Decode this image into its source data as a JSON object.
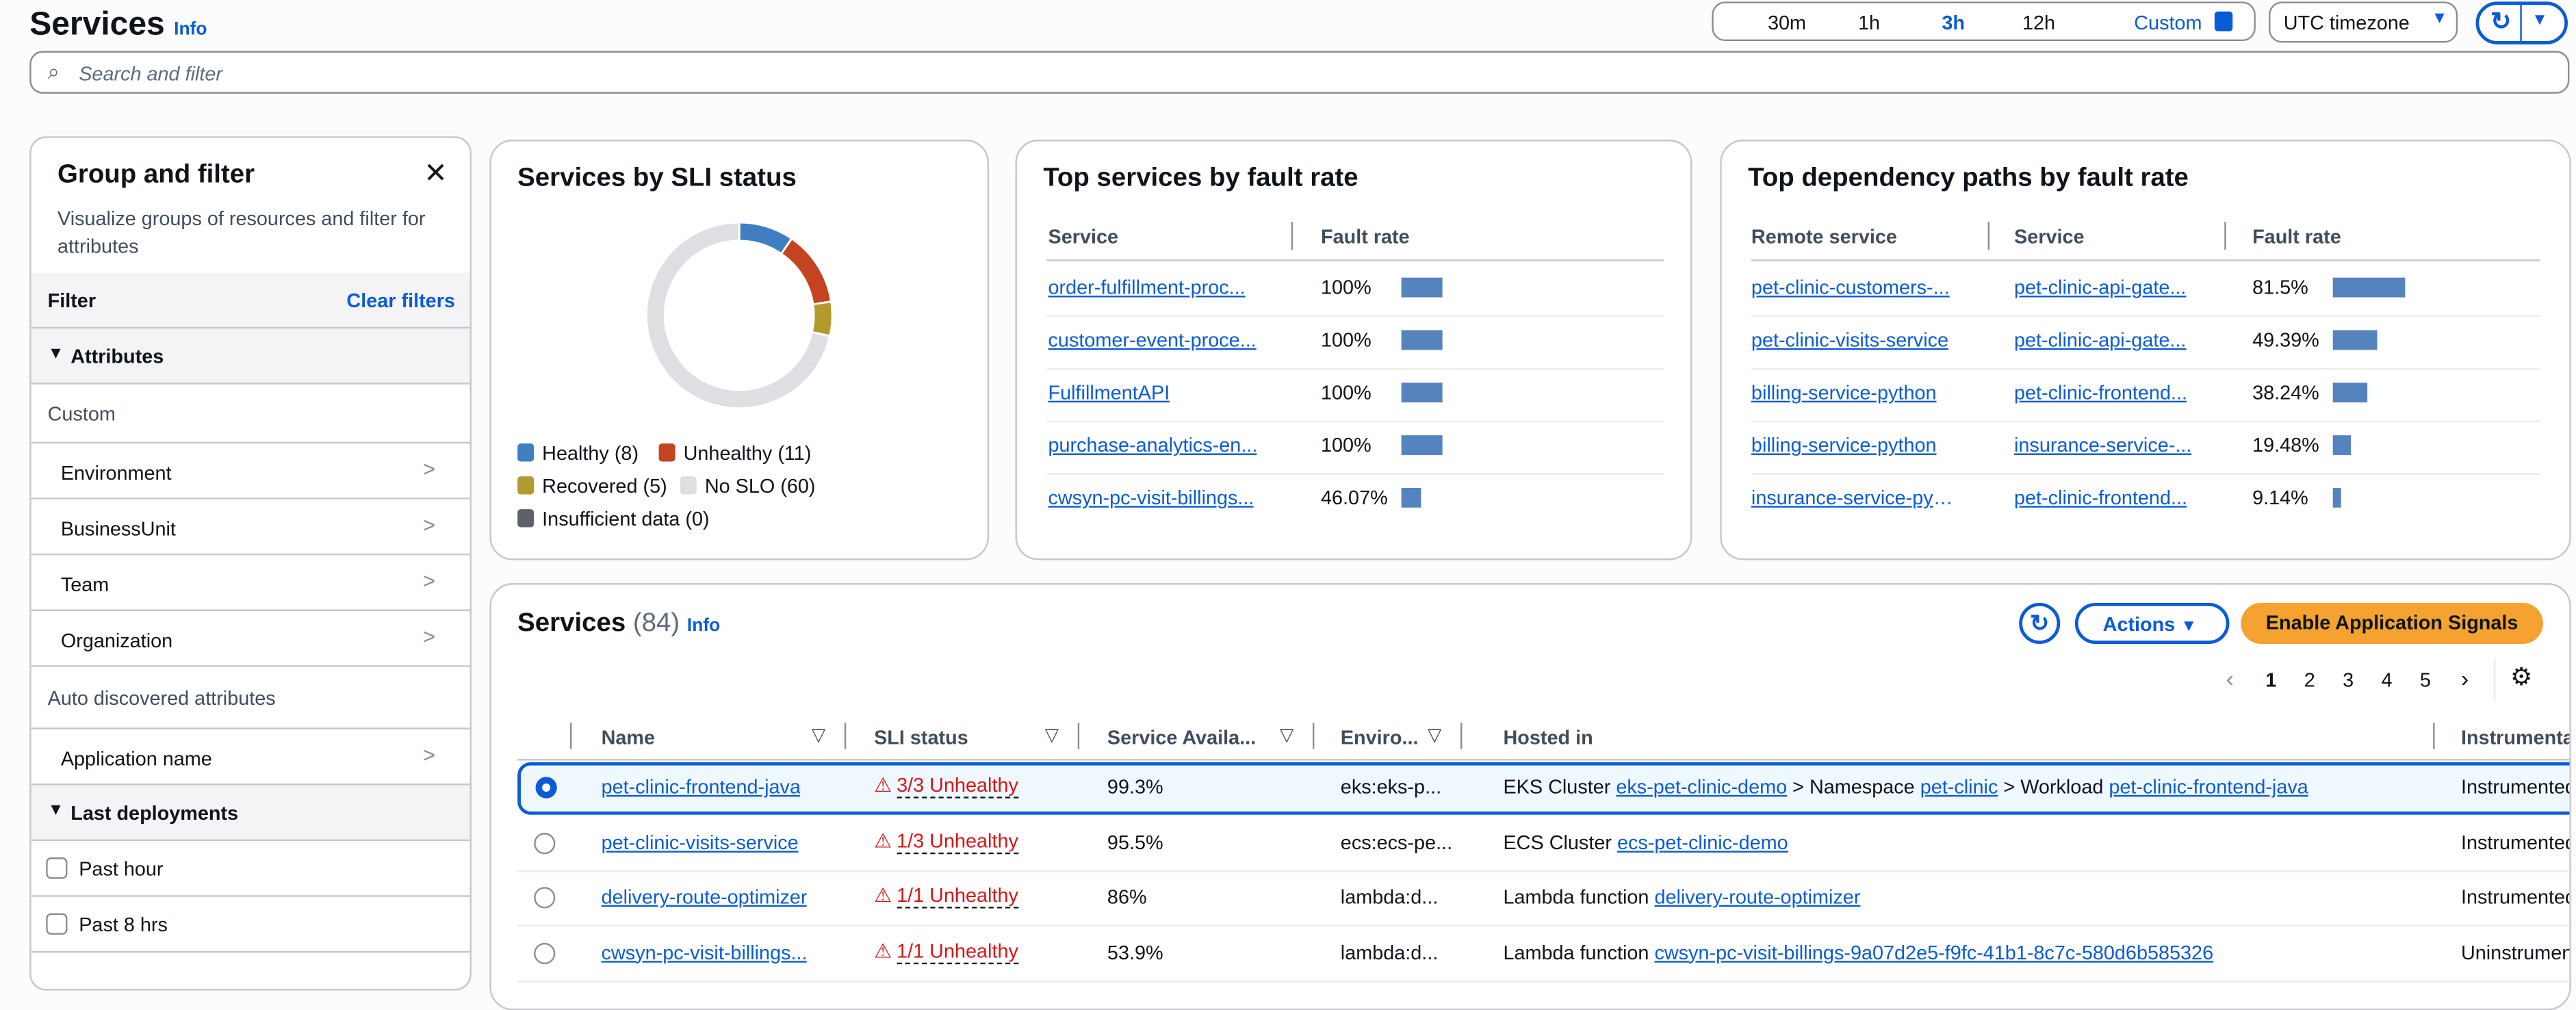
{
  "header": {
    "title": "Services",
    "info": "Info"
  },
  "time_range": {
    "options": [
      "30m",
      "1h",
      "3h",
      "12h"
    ],
    "selected": "3h",
    "custom": "Custom"
  },
  "timezone": {
    "value": "UTC timezone"
  },
  "search": {
    "placeholder": "Search and filter"
  },
  "sidebar": {
    "title": "Group and filter",
    "description": "Visualize groups of resources and filter for attributes",
    "filter_label": "Filter",
    "clear_filters": "Clear filters",
    "attributes_label": "Attributes",
    "custom_label": "Custom",
    "custom_items": [
      "Environment",
      "BusinessUnit",
      "Team",
      "Organization"
    ],
    "auto_label": "Auto discovered attributes",
    "auto_items": [
      "Application name"
    ],
    "deployments_label": "Last deployments",
    "deployments": [
      {
        "label": "Past hour",
        "checked": false
      },
      {
        "label": "Past 8 hrs",
        "checked": false
      }
    ]
  },
  "sli_card": {
    "title": "Services by SLI status",
    "segments": [
      {
        "label": "Healthy (8)",
        "value": 8,
        "color": "#3f7fc1"
      },
      {
        "label": "Unhealthy (11)",
        "value": 11,
        "color": "#c4441f"
      },
      {
        "label": "Recovered (5)",
        "value": 5,
        "color": "#b39a2e"
      },
      {
        "label": "No SLO (60)",
        "value": 60,
        "color": "#dedee3"
      },
      {
        "label": "Insufficient data (0)",
        "value": 0,
        "color": "#5f6168"
      }
    ]
  },
  "top_services": {
    "title": "Top services by fault rate",
    "columns": [
      "Service",
      "Fault rate"
    ],
    "rows": [
      {
        "service": "order-fulfillment-proc...",
        "rate": "100%",
        "value": 100
      },
      {
        "service": "customer-event-proce...",
        "rate": "100%",
        "value": 100
      },
      {
        "service": "FulfillmentAPI",
        "rate": "100%",
        "value": 100
      },
      {
        "service": "purchase-analytics-en...",
        "rate": "100%",
        "value": 100
      },
      {
        "service": "cwsyn-pc-visit-billings...",
        "rate": "46.07%",
        "value": 46.07
      }
    ]
  },
  "top_dependencies": {
    "title": "Top dependency paths by fault rate",
    "columns": [
      "Remote service",
      "Service",
      "Fault rate"
    ],
    "rows": [
      {
        "remote": "pet-clinic-customers-...",
        "service": "pet-clinic-api-gate...",
        "rate": "81.5%",
        "value": 81.5
      },
      {
        "remote": "pet-clinic-visits-service",
        "service": "pet-clinic-api-gate...",
        "rate": "49.39%",
        "value": 49.39
      },
      {
        "remote": "billing-service-python",
        "service": "pet-clinic-frontend...",
        "rate": "38.24%",
        "value": 38.24
      },
      {
        "remote": "billing-service-python",
        "service": "insurance-service-...",
        "rate": "19.48%",
        "value": 19.48
      },
      {
        "remote": "insurance-service-pyt...",
        "service": "pet-clinic-frontend...",
        "rate": "9.14%",
        "value": 9.14
      }
    ]
  },
  "services_table": {
    "title": "Services",
    "count": "(84)",
    "info": "Info",
    "actions": "Actions",
    "enable": "Enable Application Signals",
    "pages": [
      "1",
      "2",
      "3",
      "4",
      "5"
    ],
    "current_page": "1",
    "columns": [
      "Name",
      "SLI status",
      "Service Availa...",
      "Enviro...",
      "Hosted in",
      "Instrumenta"
    ],
    "rows": [
      {
        "selected": true,
        "name": "pet-clinic-frontend-java",
        "sli": "3/3 Unhealthy",
        "avail": "99.3%",
        "env": "eks:eks-p...",
        "hosted": [
          [
            "t",
            "EKS Cluster "
          ],
          [
            "l",
            "eks-pet-clinic-demo"
          ],
          [
            "t",
            " > Namespace "
          ],
          [
            "l",
            "pet-clinic"
          ],
          [
            "t",
            " > Workload "
          ],
          [
            "l",
            "pet-clinic-frontend-java"
          ]
        ],
        "instr": "Instrumented"
      },
      {
        "selected": false,
        "name": "pet-clinic-visits-service",
        "sli": "1/3 Unhealthy",
        "avail": "95.5%",
        "env": "ecs:ecs-pe...",
        "hosted": [
          [
            "t",
            "ECS Cluster "
          ],
          [
            "l",
            "ecs-pet-clinic-demo"
          ]
        ],
        "instr": "Instrumented"
      },
      {
        "selected": false,
        "name": "delivery-route-optimizer",
        "sli": "1/1 Unhealthy",
        "avail": "86%",
        "env": "lambda:d...",
        "hosted": [
          [
            "t",
            "Lambda function "
          ],
          [
            "l",
            "delivery-route-optimizer"
          ]
        ],
        "instr": "Instrumented"
      },
      {
        "selected": false,
        "name": "cwsyn-pc-visit-billings...",
        "sli": "1/1 Unhealthy",
        "avail": "53.9%",
        "env": "lambda:d...",
        "hosted": [
          [
            "t",
            "Lambda function "
          ],
          [
            "l",
            "cwsyn-pc-visit-billings-9a07d2e5-f9fc-41b1-8c7c-580d6b585326"
          ]
        ],
        "instr": "Uninstrumented"
      }
    ]
  },
  "colors": {
    "accent": "#0a5bd6",
    "primary_button": "#f5a231",
    "error": "#d91515",
    "bar": "#5583be"
  }
}
